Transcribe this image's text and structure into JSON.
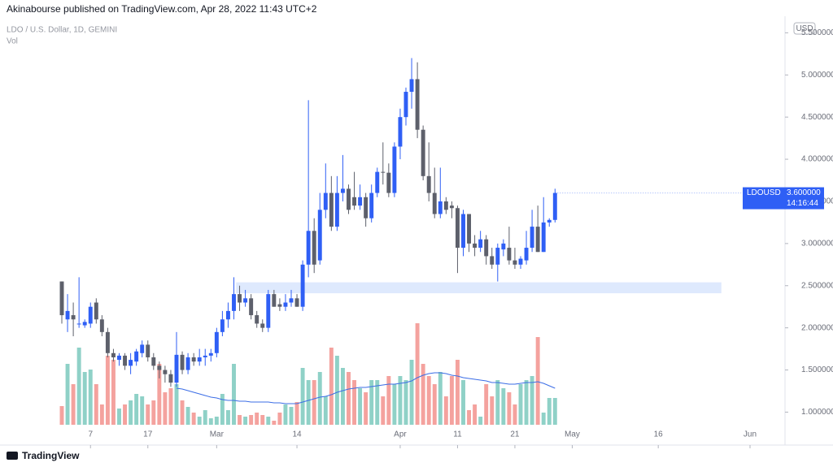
{
  "chart_data": {
    "type": "candlestick",
    "published": "Akinabourse published on TradingView.com, Apr 28, 2022 11:43 UTC+2",
    "title": "LDO / U.S. Dollar, 1D, GEMINI",
    "volume_title": "Vol",
    "currency": "USD",
    "footer": "TradingView",
    "up_color": "#2f5ff5",
    "down_color": "#5d606b",
    "volume_up_color": "#8fd1c7",
    "volume_down_color": "#f4a29e",
    "volume_ma_color": "#3b6de6",
    "zone_color": "#d6e4fd",
    "xlim": [
      -10.78,
      126.1
    ],
    "xticks": [
      {
        "value": 5,
        "label": "7"
      },
      {
        "value": 15,
        "label": "17"
      },
      {
        "value": 27,
        "label": "Mar"
      },
      {
        "value": 41,
        "label": "14"
      },
      {
        "value": 59,
        "label": "Apr"
      },
      {
        "value": 69,
        "label": "11"
      },
      {
        "value": 79,
        "label": "21"
      },
      {
        "value": 89,
        "label": "May"
      },
      {
        "value": 104,
        "label": "16"
      },
      {
        "value": 120,
        "label": "Jun"
      }
    ],
    "ylim": [
      0.85,
      5.6
    ],
    "yticks": [
      {
        "value": 1,
        "label": "1.000000"
      },
      {
        "value": 1.5,
        "label": "1.500000"
      },
      {
        "value": 2,
        "label": "2.000000"
      },
      {
        "value": 2.5,
        "label": "2.500000"
      },
      {
        "value": 3,
        "label": "3.000000"
      },
      {
        "value": 3.5,
        "label": "3.500000"
      },
      {
        "value": 4,
        "label": "4.000000"
      },
      {
        "value": 4.5,
        "label": "4.500000"
      },
      {
        "value": 5,
        "label": "5.000000"
      },
      {
        "value": 5.5,
        "label": "5.500000"
      }
    ],
    "volume_lim": [
      0,
      400
    ],
    "zone": {
      "xlim": [
        30.4,
        115
      ],
      "ylim": [
        2.41,
        2.54
      ]
    },
    "last_price": {
      "symbol": "LDOUSD",
      "value": 3.6,
      "label": "3.600000",
      "countdown": "14:16:44"
    },
    "ohlc": [
      [
        2.55,
        2.55,
        2.05,
        2.15
      ],
      [
        2.1,
        2.4,
        1.95,
        2.2
      ],
      [
        2.15,
        2.3,
        1.9,
        2.1
      ],
      [
        2.05,
        2.6,
        2.0,
        2.05
      ],
      [
        2.03,
        2.1,
        2.0,
        2.07
      ],
      [
        2.05,
        2.3,
        2.0,
        2.25
      ],
      [
        2.3,
        2.35,
        2.05,
        2.1
      ],
      [
        2.1,
        2.15,
        1.9,
        1.95
      ],
      [
        1.95,
        2.0,
        1.65,
        1.7
      ],
      [
        1.7,
        1.75,
        1.6,
        1.65
      ],
      [
        1.62,
        1.7,
        1.55,
        1.67
      ],
      [
        1.67,
        1.7,
        1.5,
        1.55
      ],
      [
        1.55,
        1.7,
        1.45,
        1.62
      ],
      [
        1.6,
        1.75,
        1.55,
        1.72
      ],
      [
        1.7,
        1.85,
        1.65,
        1.8
      ],
      [
        1.8,
        1.85,
        1.6,
        1.65
      ],
      [
        1.65,
        1.7,
        1.5,
        1.55
      ],
      [
        1.55,
        1.6,
        1.4,
        1.5
      ],
      [
        1.5,
        1.55,
        1.35,
        1.45
      ],
      [
        1.45,
        1.5,
        1.3,
        1.35
      ],
      [
        1.35,
        1.95,
        1.3,
        1.68
      ],
      [
        1.68,
        1.72,
        1.45,
        1.5
      ],
      [
        1.5,
        1.7,
        1.45,
        1.65
      ],
      [
        1.65,
        1.7,
        1.55,
        1.6
      ],
      [
        1.6,
        1.75,
        1.55,
        1.65
      ],
      [
        1.65,
        1.75,
        1.55,
        1.67
      ],
      [
        1.67,
        1.75,
        1.6,
        1.7
      ],
      [
        1.7,
        2.0,
        1.65,
        1.95
      ],
      [
        1.95,
        2.2,
        1.9,
        2.1
      ],
      [
        2.1,
        2.3,
        2.0,
        2.2
      ],
      [
        2.2,
        2.6,
        2.1,
        2.4
      ],
      [
        2.4,
        2.5,
        2.2,
        2.3
      ],
      [
        2.3,
        2.45,
        2.25,
        2.35
      ],
      [
        2.35,
        2.4,
        2.1,
        2.15
      ],
      [
        2.15,
        2.2,
        2.0,
        2.05
      ],
      [
        2.05,
        2.1,
        1.95,
        2.0
      ],
      [
        2.0,
        2.45,
        1.95,
        2.4
      ],
      [
        2.4,
        2.45,
        2.25,
        2.25
      ],
      [
        2.28,
        2.35,
        2.2,
        2.25
      ],
      [
        2.25,
        2.4,
        2.2,
        2.3
      ],
      [
        2.3,
        2.45,
        2.25,
        2.35
      ],
      [
        2.35,
        2.4,
        2.25,
        2.25
      ],
      [
        2.25,
        2.8,
        2.2,
        2.75
      ],
      [
        2.75,
        4.7,
        2.6,
        3.15
      ],
      [
        3.15,
        3.3,
        2.65,
        2.75
      ],
      [
        2.8,
        3.6,
        2.75,
        3.4
      ],
      [
        3.4,
        3.95,
        3.3,
        3.6
      ],
      [
        3.6,
        3.8,
        3.15,
        3.2
      ],
      [
        3.2,
        3.8,
        3.15,
        3.6
      ],
      [
        3.6,
        4.05,
        3.5,
        3.65
      ],
      [
        3.65,
        3.7,
        3.35,
        3.4
      ],
      [
        3.55,
        3.85,
        3.4,
        3.45
      ],
      [
        3.45,
        3.7,
        3.4,
        3.55
      ],
      [
        3.55,
        3.6,
        3.2,
        3.3
      ],
      [
        3.3,
        3.7,
        3.25,
        3.6
      ],
      [
        3.6,
        3.9,
        3.55,
        3.85
      ],
      [
        3.85,
        4.2,
        3.7,
        3.84
      ],
      [
        3.84,
        3.95,
        3.55,
        3.6
      ],
      [
        3.6,
        4.2,
        3.55,
        4.15
      ],
      [
        4.15,
        4.6,
        4.0,
        4.5
      ],
      [
        4.5,
        4.85,
        4.4,
        4.8
      ],
      [
        4.8,
        5.2,
        4.6,
        4.95
      ],
      [
        4.95,
        5.15,
        4.25,
        4.35
      ],
      [
        4.35,
        4.4,
        3.75,
        3.8
      ],
      [
        3.8,
        4.2,
        3.5,
        3.6
      ],
      [
        3.6,
        3.9,
        3.3,
        3.35
      ],
      [
        3.35,
        3.9,
        3.3,
        3.5
      ],
      [
        3.5,
        3.55,
        3.35,
        3.4
      ],
      [
        3.45,
        3.5,
        3.3,
        3.42
      ],
      [
        3.42,
        3.45,
        2.65,
        2.95
      ],
      [
        2.95,
        3.4,
        2.85,
        3.35
      ],
      [
        3.35,
        3.35,
        2.9,
        3.0
      ],
      [
        3.0,
        3.1,
        2.85,
        2.95
      ],
      [
        2.95,
        3.15,
        2.9,
        3.05
      ],
      [
        3.05,
        3.1,
        2.75,
        2.85
      ],
      [
        2.85,
        2.95,
        2.7,
        2.75
      ],
      [
        2.75,
        3.0,
        2.55,
        2.95
      ],
      [
        2.93,
        3.05,
        2.85,
        3.0
      ],
      [
        2.95,
        3.2,
        2.75,
        2.8
      ],
      [
        2.8,
        2.95,
        2.7,
        2.75
      ],
      [
        2.75,
        2.85,
        2.7,
        2.82
      ],
      [
        2.8,
        3.15,
        2.75,
        2.95
      ],
      [
        2.95,
        3.4,
        2.9,
        3.2
      ],
      [
        3.2,
        3.45,
        2.9,
        2.9
      ],
      [
        2.9,
        3.55,
        2.9,
        3.25
      ],
      [
        3.25,
        3.3,
        3.2,
        3.28
      ],
      [
        3.28,
        3.65,
        3.25,
        3.6
      ]
    ],
    "volume": [
      23,
      75,
      50,
      95,
      65,
      68,
      50,
      25,
      85,
      80,
      20,
      25,
      30,
      38,
      35,
      25,
      30,
      75,
      40,
      45,
      50,
      30,
      22,
      15,
      10,
      18,
      8,
      10,
      38,
      18,
      75,
      12,
      10,
      12,
      15,
      12,
      10,
      5,
      15,
      25,
      22,
      28,
      70,
      55,
      55,
      65,
      35,
      95,
      85,
      70,
      65,
      55,
      45,
      40,
      55,
      55,
      35,
      60,
      50,
      60,
      55,
      80,
      125,
      75,
      60,
      50,
      65,
      35,
      60,
      80,
      55,
      18,
      25,
      10,
      50,
      35,
      55,
      45,
      40,
      25,
      50,
      55,
      60,
      108,
      15,
      33,
      33
    ],
    "volume_ma": [
      null,
      null,
      null,
      null,
      null,
      null,
      null,
      null,
      null,
      null,
      null,
      null,
      null,
      null,
      null,
      null,
      null,
      null,
      null,
      null,
      45,
      44,
      42,
      40,
      38,
      36,
      34,
      33,
      31,
      30,
      30,
      29,
      29,
      28,
      28,
      28,
      28,
      27,
      27,
      26,
      26,
      26,
      28,
      30,
      32,
      34,
      35,
      37,
      40,
      42,
      44,
      45,
      46,
      46,
      47,
      48,
      49,
      50,
      50,
      51,
      52,
      54,
      58,
      61,
      63,
      64,
      64,
      63,
      61,
      60,
      58,
      57,
      56,
      55,
      54,
      52,
      52,
      51,
      50,
      50,
      51,
      52,
      52,
      53,
      51,
      48,
      45
    ]
  }
}
